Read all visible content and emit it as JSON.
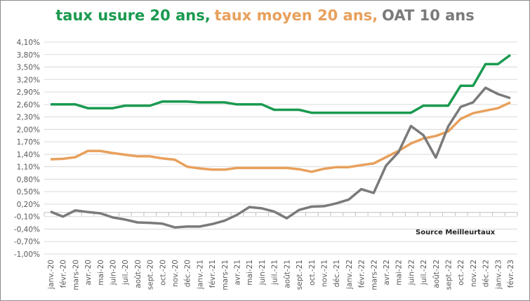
{
  "chart_data": {
    "type": "line",
    "title_parts": [
      {
        "text": "taux usure 20 ans,",
        "color": "#1a9a50"
      },
      {
        "text": "taux moyen 20 ans,",
        "color": "#e8a05c"
      },
      {
        "text": "OAT 10 ans",
        "color": "#7a7a7a"
      }
    ],
    "annotation": "Source Meilleurtaux",
    "ylim": [
      -1.0,
      4.1
    ],
    "yticks": [
      "4,10%",
      "3,80%",
      "3,50%",
      "3,20%",
      "2,90%",
      "2,60%",
      "2,30%",
      "2,00%",
      "1,70%",
      "1,40%",
      "1,10%",
      "0,80%",
      "0,50%",
      "0,20%",
      "-0,10%",
      "-0,40%",
      "-0,70%",
      "-1,00%"
    ],
    "grid": true,
    "categories": [
      "janv.-20",
      "févr.-20",
      "mars-20",
      "avr.-20",
      "mai-20",
      "juin-20",
      "juil.-20",
      "août-20",
      "sept.-20",
      "oct.-20",
      "nov.-20",
      "déc.-20",
      "janv.-21",
      "févr.-21",
      "mars-21",
      "avr.-21",
      "mai-21",
      "juin-21",
      "juil.-21",
      "août-21",
      "sept.-21",
      "oct.-21",
      "nov.-21",
      "déc.-21",
      "janv.-22",
      "févr.-22",
      "mars-22",
      "avr.-22",
      "mai-22",
      "juin-22",
      "juil.-22",
      "août-22",
      "sept.-22",
      "oct.-22",
      "nov.-22",
      "déc.-22",
      "janv.-23",
      "févr.-23"
    ],
    "series": [
      {
        "name": "taux usure 20 ans",
        "color": "#1a9a50",
        "values": [
          2.6,
          2.6,
          2.6,
          2.51,
          2.51,
          2.51,
          2.57,
          2.57,
          2.57,
          2.67,
          2.67,
          2.67,
          2.65,
          2.65,
          2.65,
          2.6,
          2.6,
          2.6,
          2.47,
          2.47,
          2.47,
          2.4,
          2.4,
          2.4,
          2.4,
          2.4,
          2.4,
          2.4,
          2.4,
          2.4,
          2.57,
          2.57,
          2.57,
          3.05,
          3.05,
          3.57,
          3.57,
          3.79
        ]
      },
      {
        "name": "taux moyen 20 ans",
        "color": "#e8a05c",
        "values": [
          1.28,
          1.29,
          1.33,
          1.48,
          1.48,
          1.43,
          1.39,
          1.35,
          1.35,
          1.3,
          1.27,
          1.1,
          1.06,
          1.03,
          1.03,
          1.07,
          1.07,
          1.07,
          1.07,
          1.07,
          1.04,
          0.98,
          1.05,
          1.09,
          1.09,
          1.14,
          1.18,
          1.33,
          1.48,
          1.66,
          1.78,
          1.84,
          1.95,
          2.25,
          2.39,
          2.45,
          2.51,
          2.65
        ]
      },
      {
        "name": "OAT 10 ans",
        "color": "#7a7a7a",
        "values": [
          0.02,
          -0.1,
          0.05,
          0.01,
          -0.02,
          -0.12,
          -0.17,
          -0.24,
          -0.25,
          -0.27,
          -0.36,
          -0.34,
          -0.34,
          -0.28,
          -0.2,
          -0.06,
          0.13,
          0.1,
          0.02,
          -0.14,
          0.06,
          0.14,
          0.15,
          0.22,
          0.31,
          0.56,
          0.47,
          1.13,
          1.45,
          2.08,
          1.86,
          1.32,
          2.07,
          2.54,
          2.65,
          3.0,
          2.85,
          2.75
        ]
      }
    ]
  }
}
